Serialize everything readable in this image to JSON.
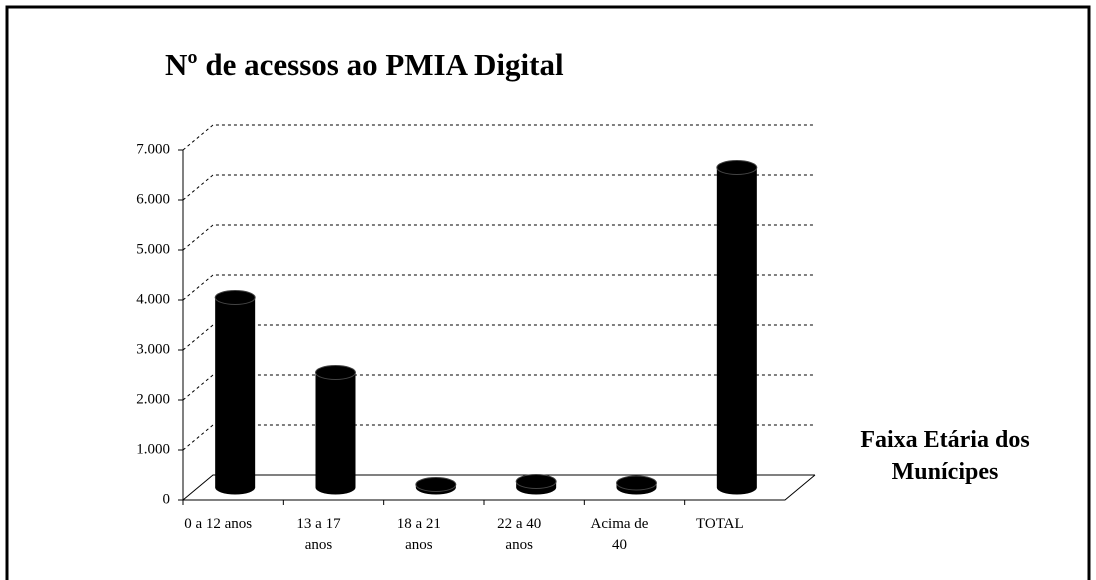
{
  "chart_data": {
    "type": "bar",
    "title": "Nº de acessos ao PMIA Digital",
    "categories": [
      "0 a 12 anos",
      "13 a 17 anos",
      "18 a 21 anos",
      "22 a 40 anos",
      "Acima de 40",
      "TOTAL"
    ],
    "values": [
      3800,
      2300,
      60,
      120,
      90,
      6400
    ],
    "color": "#000000",
    "x_label": "Faixa Etária dos Munícipes",
    "ylim": [
      0,
      7000
    ],
    "yticks": [
      0,
      {
        "value": 1000,
        "label": "1.000"
      },
      {
        "value": 2000,
        "label": "2.000"
      },
      {
        "value": 3000,
        "label": "3.000"
      },
      {
        "value": 4000,
        "label": "4.000"
      },
      {
        "value": 5000,
        "label": "5.000"
      },
      {
        "value": 6000,
        "label": "6.000"
      },
      {
        "value": 7000,
        "label": "7.000"
      }
    ],
    "grid": true
  }
}
